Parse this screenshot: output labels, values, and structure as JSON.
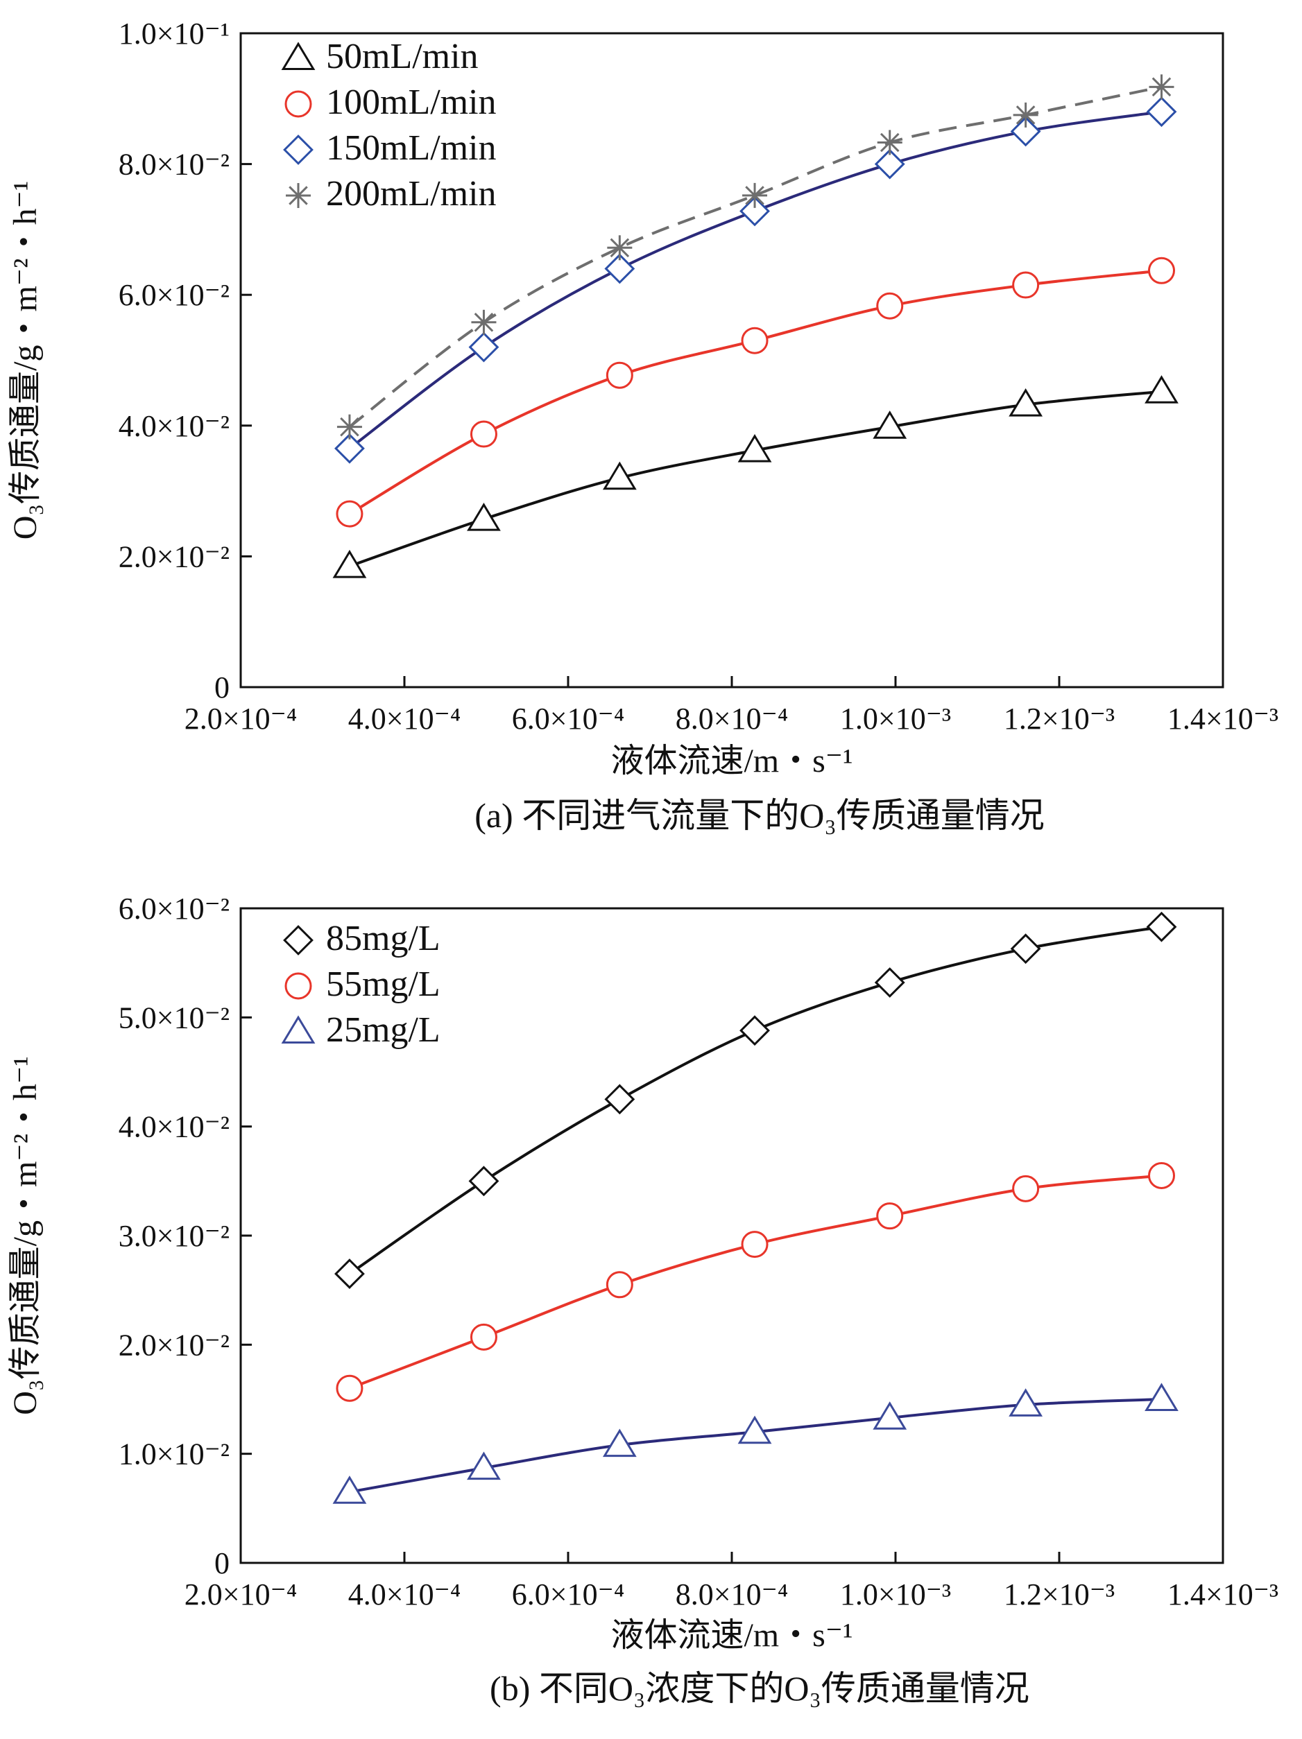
{
  "chart_data": [
    {
      "type": "line",
      "caption": "(a) 不同进气流量下的O₃传质通量情况",
      "xlabel": "液体流速/m・s⁻¹",
      "ylabel": "O₃传质通量/g・m⁻²・h⁻¹",
      "xlim": [
        0.0002,
        0.0014
      ],
      "ylim": [
        0,
        0.1
      ],
      "x_ticks": [
        0.0002,
        0.0004,
        0.0006,
        0.0008,
        0.001,
        0.0012,
        0.0014
      ],
      "x_tick_labels": [
        "2.0×10⁻⁴",
        "4.0×10⁻⁴",
        "6.0×10⁻⁴",
        "8.0×10⁻⁴",
        "1.0×10⁻³",
        "1.2×10⁻³",
        "1.4×10⁻³"
      ],
      "y_ticks": [
        0,
        0.02,
        0.04,
        0.06,
        0.08,
        0.1
      ],
      "y_tick_labels": [
        "0",
        "2.0×10⁻²",
        "4.0×10⁻²",
        "6.0×10⁻²",
        "8.0×10⁻²",
        "1.0×10⁻¹"
      ],
      "legend_position": "top-left",
      "x": [
        0.000333,
        0.000497,
        0.000663,
        0.000828,
        0.000993,
        0.001159,
        0.001325
      ],
      "series": [
        {
          "name": "50mL/min",
          "marker": "triangle",
          "color": "#111111",
          "marker_color": "#111111",
          "dashed": false,
          "values": [
            0.0185,
            0.0257,
            0.032,
            0.0362,
            0.0398,
            0.0432,
            0.0452
          ]
        },
        {
          "name": "100mL/min",
          "marker": "circle",
          "color": "#e8352a",
          "marker_color": "#e8352a",
          "dashed": false,
          "values": [
            0.0265,
            0.0387,
            0.0477,
            0.053,
            0.0583,
            0.0615,
            0.0637
          ]
        },
        {
          "name": "150mL/min",
          "marker": "diamond",
          "color": "#2b2a7a",
          "marker_color": "#2b4fa8",
          "dashed": false,
          "values": [
            0.0365,
            0.052,
            0.064,
            0.0728,
            0.08,
            0.085,
            0.088
          ]
        },
        {
          "name": "200mL/min",
          "marker": "star",
          "color": "#6e6e6e",
          "marker_color": "#6e6e6e",
          "dashed": true,
          "values": [
            0.0398,
            0.0558,
            0.0672,
            0.0752,
            0.0833,
            0.0875,
            0.0918
          ]
        }
      ]
    },
    {
      "type": "line",
      "caption": "(b) 不同O₃浓度下的O₃传质通量情况",
      "xlabel": "液体流速/m・s⁻¹",
      "ylabel": "O₃传质通量/g・m⁻²・h⁻¹",
      "xlim": [
        0.0002,
        0.0014
      ],
      "ylim": [
        0,
        0.06
      ],
      "x_ticks": [
        0.0002,
        0.0004,
        0.0006,
        0.0008,
        0.001,
        0.0012,
        0.0014
      ],
      "x_tick_labels": [
        "2.0×10⁻⁴",
        "4.0×10⁻⁴",
        "6.0×10⁻⁴",
        "8.0×10⁻⁴",
        "1.0×10⁻³",
        "1.2×10⁻³",
        "1.4×10⁻³"
      ],
      "y_ticks": [
        0,
        0.01,
        0.02,
        0.03,
        0.04,
        0.05,
        0.06
      ],
      "y_tick_labels": [
        "0",
        "1.0×10⁻²",
        "2.0×10⁻²",
        "3.0×10⁻²",
        "4.0×10⁻²",
        "5.0×10⁻²",
        "6.0×10⁻²"
      ],
      "legend_position": "top-left",
      "x": [
        0.000333,
        0.000497,
        0.000663,
        0.000828,
        0.000993,
        0.001159,
        0.001325
      ],
      "series": [
        {
          "name": "85mg/L",
          "marker": "diamond",
          "color": "#111111",
          "marker_color": "#111111",
          "dashed": false,
          "values": [
            0.0265,
            0.035,
            0.0425,
            0.0488,
            0.0532,
            0.0563,
            0.0583
          ]
        },
        {
          "name": "55mg/L",
          "marker": "circle",
          "color": "#e8352a",
          "marker_color": "#e8352a",
          "dashed": false,
          "values": [
            0.016,
            0.0207,
            0.0255,
            0.0292,
            0.0318,
            0.0343,
            0.0355
          ]
        },
        {
          "name": "25mg/L",
          "marker": "triangle",
          "color": "#2b2a7a",
          "marker_color": "#3b4a9a",
          "dashed": false,
          "values": [
            0.0065,
            0.0087,
            0.0108,
            0.012,
            0.0133,
            0.0145,
            0.015
          ]
        }
      ]
    }
  ]
}
